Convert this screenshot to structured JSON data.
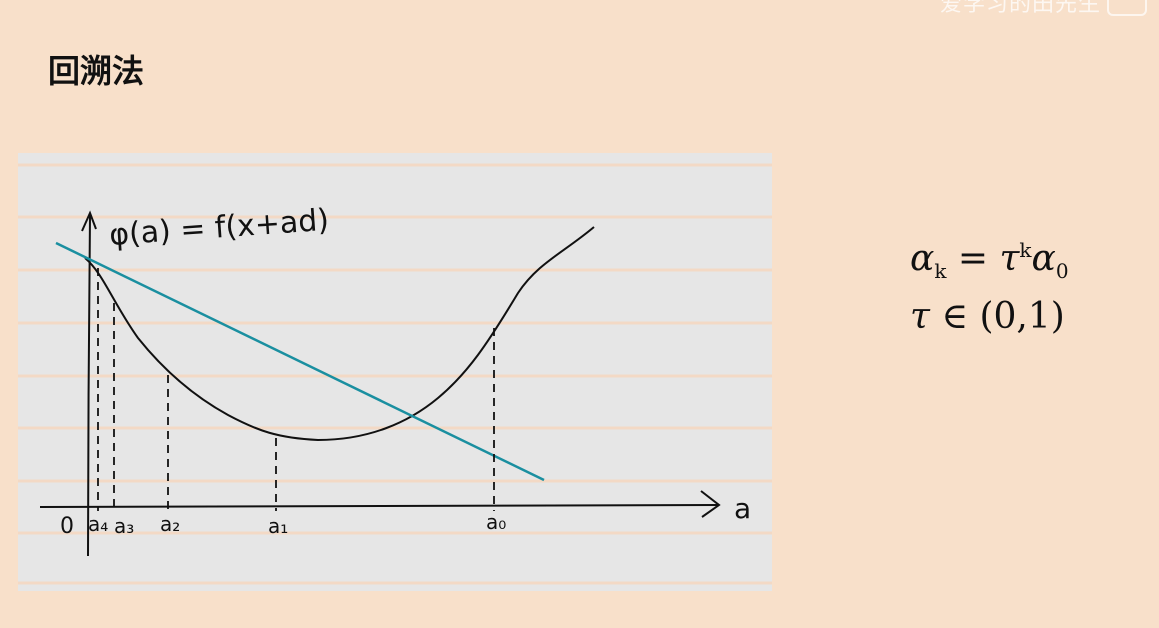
{
  "header": {
    "title": "回溯法",
    "watermark": "爱学习的田先生"
  },
  "diagram": {
    "function_label": "φ(a) = f(x+ad)",
    "origin_label": "0",
    "x_axis_label": "a",
    "point_labels": [
      "a₄",
      "a₃",
      "a₂",
      "a₁",
      "a₀"
    ],
    "colors": {
      "curve": "#111111",
      "tangent": "#1a8fa0",
      "paper_lines": "#f2d7c4",
      "paper": "#e6e6e6"
    }
  },
  "formulas": {
    "line1": {
      "alpha": "α",
      "sub_k": "k",
      "eq": " = ",
      "tau": "τ",
      "sup_k": "k",
      "alpha0": "α",
      "sub_0": "0"
    },
    "line2": {
      "tau": "τ",
      "rest": " ∈ (0,1)"
    }
  }
}
